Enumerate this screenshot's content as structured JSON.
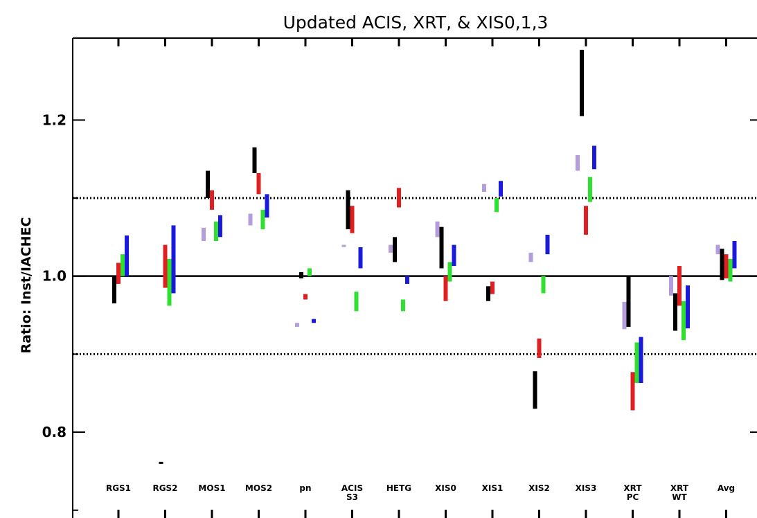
{
  "chart_data": {
    "type": "error-bars",
    "title": "Updated ACIS, XRT, & XIS0,1,3",
    "ylabel": "Ratio: Inst/IACHEC",
    "xlabel": "",
    "ylim": [
      0.69,
      1.305
    ],
    "yticks": [
      "0.8",
      "1.0",
      "1.2"
    ],
    "reference_lines": [
      {
        "y": 1.0,
        "style": "solid"
      },
      {
        "y": 0.9,
        "style": "dotted"
      },
      {
        "y": 1.1,
        "style": "dotted"
      }
    ],
    "categories": [
      {
        "label": [
          "RGS1"
        ]
      },
      {
        "label": [
          "RGS2"
        ]
      },
      {
        "label": [
          "MOS1"
        ]
      },
      {
        "label": [
          "MOS2"
        ]
      },
      {
        "label": [
          "pn"
        ]
      },
      {
        "label": [
          "ACIS",
          "S3"
        ]
      },
      {
        "label": [
          "HETG"
        ]
      },
      {
        "label": [
          "XIS0"
        ]
      },
      {
        "label": [
          "XIS1"
        ]
      },
      {
        "label": [
          "XIS2"
        ]
      },
      {
        "label": [
          "XIS3"
        ]
      },
      {
        "label": [
          "XRT",
          "PC"
        ]
      },
      {
        "label": [
          "XRT",
          "WT"
        ]
      },
      {
        "label": [
          "Avg"
        ]
      }
    ],
    "series_colors": [
      "#b39ddb",
      "#000000",
      "#e02020",
      "#30e030",
      "#1a1adc"
    ],
    "series": [
      {
        "color": "#b39ddb",
        "ranges": [
          null,
          null,
          [
            1.045,
            1.062
          ],
          [
            1.065,
            1.08
          ],
          [
            0.935,
            0.94
          ],
          [
            1.038,
            1.04
          ],
          [
            1.03,
            1.04
          ],
          [
            1.05,
            1.07
          ],
          [
            1.108,
            1.118
          ],
          [
            1.018,
            1.03
          ],
          [
            1.135,
            1.155
          ],
          [
            0.932,
            0.967
          ],
          [
            0.975,
            1.0
          ],
          [
            1.028,
            1.04
          ]
        ]
      },
      {
        "color": "#000000",
        "ranges": [
          [
            0.965,
            1.0
          ],
          [
            0.76,
            0.762
          ],
          [
            1.1,
            1.135
          ],
          [
            1.132,
            1.165
          ],
          [
            0.997,
            1.005
          ],
          [
            1.06,
            1.11
          ],
          [
            1.018,
            1.05
          ],
          [
            1.01,
            1.063
          ],
          [
            0.968,
            0.987
          ],
          [
            0.83,
            0.878
          ],
          [
            1.205,
            1.29
          ],
          [
            0.935,
            1.0
          ],
          [
            0.93,
            0.978
          ],
          [
            0.995,
            1.035
          ]
        ]
      },
      {
        "color": "#e02020",
        "ranges": [
          [
            0.99,
            1.017
          ],
          [
            0.985,
            1.04
          ],
          [
            1.085,
            1.11
          ],
          [
            1.105,
            1.132
          ],
          [
            0.97,
            0.977
          ],
          [
            1.055,
            1.09
          ],
          [
            1.088,
            1.113
          ],
          [
            0.968,
            1.0
          ],
          [
            0.977,
            0.993
          ],
          [
            0.895,
            0.92
          ],
          [
            1.053,
            1.09
          ],
          [
            0.828,
            0.877
          ],
          [
            0.962,
            1.013
          ],
          [
            0.997,
            1.028
          ]
        ]
      },
      {
        "color": "#30e030",
        "ranges": [
          [
            1.0,
            1.028
          ],
          [
            0.962,
            1.022
          ],
          [
            1.045,
            1.07
          ],
          [
            1.06,
            1.085
          ],
          [
            1.0,
            1.01
          ],
          [
            0.955,
            0.98
          ],
          [
            0.955,
            0.97
          ],
          [
            0.993,
            1.018
          ],
          [
            1.082,
            1.1
          ],
          [
            0.978,
            1.0
          ],
          [
            1.095,
            1.127
          ],
          [
            0.863,
            0.915
          ],
          [
            0.918,
            0.968
          ],
          [
            0.993,
            1.022
          ]
        ]
      },
      {
        "color": "#1a1adc",
        "ranges": [
          [
            1.0,
            1.052
          ],
          [
            0.978,
            1.065
          ],
          [
            1.05,
            1.078
          ],
          [
            1.075,
            1.105
          ],
          [
            0.94,
            0.945
          ],
          [
            1.01,
            1.037
          ],
          [
            0.99,
            1.0
          ],
          [
            1.013,
            1.04
          ],
          [
            1.102,
            1.122
          ],
          [
            1.028,
            1.053
          ],
          [
            1.137,
            1.167
          ],
          [
            0.863,
            0.922
          ],
          [
            0.933,
            0.988
          ],
          [
            1.01,
            1.045
          ]
        ]
      }
    ]
  }
}
